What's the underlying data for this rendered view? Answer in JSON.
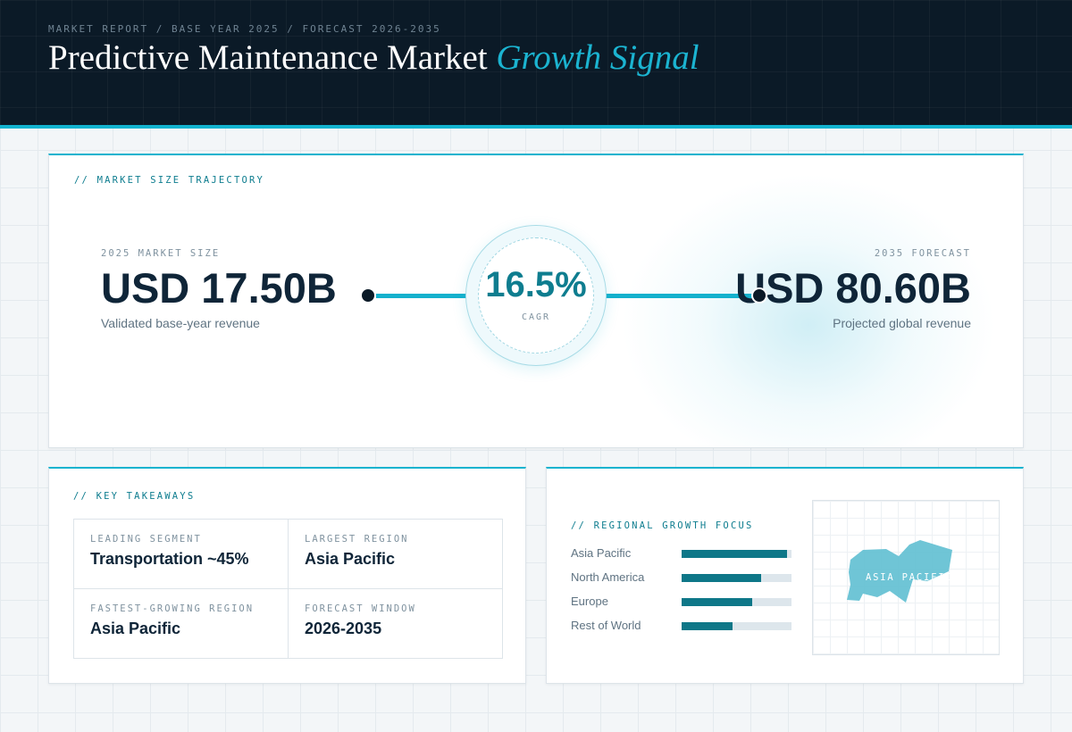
{
  "header": {
    "eyebrow": "MARKET REPORT / BASE YEAR 2025 / FORECAST 2026-2035",
    "title_main": "Predictive Maintenance Market",
    "title_accent": "Growth Signal"
  },
  "trajectory": {
    "label": "// MARKET SIZE TRAJECTORY",
    "base": {
      "label": "2025 MARKET SIZE",
      "value": "USD 17.50B",
      "caption": "Validated base-year revenue"
    },
    "cagr": {
      "value": "16.5%",
      "label": "CAGR"
    },
    "forecast": {
      "label": "2035 FORECAST",
      "value": "USD 80.60B",
      "caption": "Projected global revenue"
    }
  },
  "takeaways": {
    "label": "// KEY TAKEAWAYS",
    "items": [
      {
        "key": "LEADING SEGMENT",
        "value": "Transportation ~45%"
      },
      {
        "key": "LARGEST REGION",
        "value": "Asia Pacific"
      },
      {
        "key": "FASTEST-GROWING REGION",
        "value": "Asia Pacific"
      },
      {
        "key": "FORECAST WINDOW",
        "value": "2026-2035"
      }
    ]
  },
  "regional": {
    "label": "// REGIONAL GROWTH FOCUS",
    "regions": [
      {
        "name": "Asia Pacific",
        "share": 0.96
      },
      {
        "name": "North America",
        "share": 0.72
      },
      {
        "name": "Europe",
        "share": 0.64
      },
      {
        "name": "Rest of World",
        "share": 0.46
      }
    ],
    "map_label": "ASIA PACIFIC"
  },
  "colors": {
    "accent": "#12b3cf",
    "accent_dark": "#0e7d8f",
    "navy": "#0b1a27",
    "bar": "#0e7788",
    "map_fill": "#5fbfd1"
  }
}
